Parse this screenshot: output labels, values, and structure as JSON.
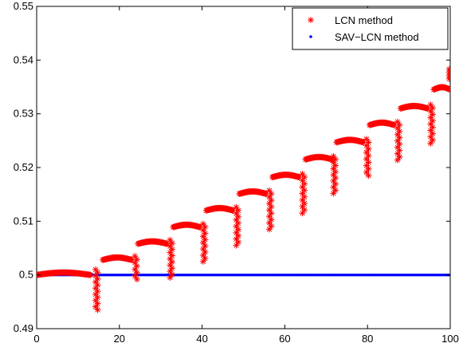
{
  "chart_data": {
    "type": "scatter",
    "title": "",
    "xlabel": "",
    "ylabel": "",
    "xlim": [
      0,
      100
    ],
    "ylim": [
      0.49,
      0.55
    ],
    "x_ticks": [
      0,
      20,
      40,
      60,
      80,
      100
    ],
    "y_ticks": [
      0.49,
      0.5,
      0.51,
      0.52,
      0.53,
      0.54,
      0.55
    ],
    "x_tick_labels": [
      "0",
      "20",
      "40",
      "60",
      "80",
      "100"
    ],
    "y_tick_labels": [
      "0.49",
      "0.5",
      "0.51",
      "0.52",
      "0.53",
      "0.54",
      "0.55"
    ],
    "grid": false,
    "legend_position": "top-right",
    "series": [
      {
        "name": "LCN method",
        "marker": "asterisk",
        "color": "#ff0000",
        "plateaus": [
          {
            "x_start": 0,
            "x_end": 13,
            "y": 0.5
          },
          {
            "x_start": 16,
            "x_end": 23,
            "y": 0.5028
          },
          {
            "x_start": 24.5,
            "x_end": 31.5,
            "y": 0.5058
          },
          {
            "x_start": 33,
            "x_end": 39.5,
            "y": 0.5089
          },
          {
            "x_start": 41,
            "x_end": 47.5,
            "y": 0.512
          },
          {
            "x_start": 49,
            "x_end": 55.5,
            "y": 0.5151
          },
          {
            "x_start": 57,
            "x_end": 63.5,
            "y": 0.5182
          },
          {
            "x_start": 65,
            "x_end": 71.5,
            "y": 0.5215
          },
          {
            "x_start": 72.5,
            "x_end": 79,
            "y": 0.5247
          },
          {
            "x_start": 80.5,
            "x_end": 86.5,
            "y": 0.5279
          },
          {
            "x_start": 88,
            "x_end": 94.5,
            "y": 0.531
          },
          {
            "x_start": 96,
            "x_end": 100,
            "y": 0.5345
          }
        ],
        "drops": [
          {
            "x": 14.5,
            "y_top": 0.501,
            "y_min": 0.4935
          },
          {
            "x": 24,
            "y_top": 0.5035,
            "y_min": 0.4992
          },
          {
            "x": 32.5,
            "y_top": 0.5065,
            "y_min": 0.4995
          },
          {
            "x": 40.5,
            "y_top": 0.5095,
            "y_min": 0.5025
          },
          {
            "x": 48.5,
            "y_top": 0.5126,
            "y_min": 0.5055
          },
          {
            "x": 56.5,
            "y_top": 0.5157,
            "y_min": 0.5085
          },
          {
            "x": 64.5,
            "y_top": 0.5188,
            "y_min": 0.5115
          },
          {
            "x": 72,
            "y_top": 0.5221,
            "y_min": 0.5152
          },
          {
            "x": 80,
            "y_top": 0.5253,
            "y_min": 0.5185
          },
          {
            "x": 87.5,
            "y_top": 0.5285,
            "y_min": 0.5214
          },
          {
            "x": 95.5,
            "y_top": 0.5317,
            "y_min": 0.5245
          },
          {
            "x": 100,
            "y_top": 0.5383,
            "y_min": 0.5365
          }
        ]
      },
      {
        "name": "SAV−LCN method",
        "marker": "dot",
        "color": "#0000ff",
        "x": [
          0,
          100
        ],
        "y": [
          0.5,
          0.5
        ]
      }
    ]
  }
}
